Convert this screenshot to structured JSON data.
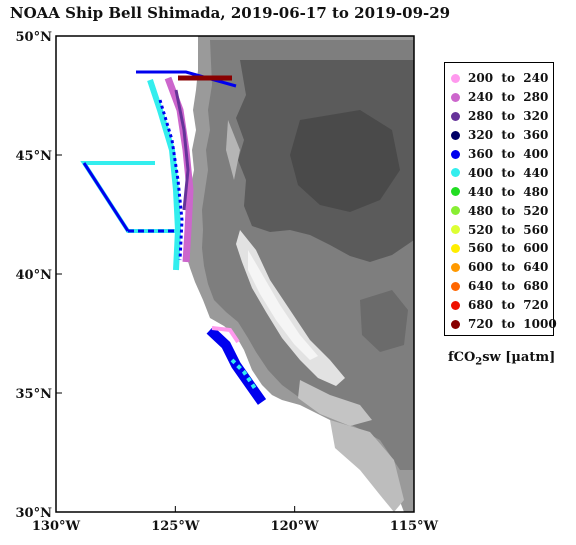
{
  "title": "NOAA Ship Bell Shimada, 2019-06-17 to 2019-09-29",
  "map": {
    "lon_range": [
      -130,
      -115
    ],
    "lat_range": [
      30,
      50
    ],
    "background": "grayscale topography, white ocean",
    "lon_ticks": [
      {
        "value": -130,
        "label": "130°W"
      },
      {
        "value": -125,
        "label": "125°W"
      },
      {
        "value": -120,
        "label": "120°W"
      },
      {
        "value": -115,
        "label": "115°W"
      }
    ],
    "lat_ticks": [
      {
        "value": 30,
        "label": "30°N"
      },
      {
        "value": 35,
        "label": "35°N"
      },
      {
        "value": 40,
        "label": "40°N"
      },
      {
        "value": 45,
        "label": "45°N"
      },
      {
        "value": 50,
        "label": "50°N"
      }
    ]
  },
  "legend": {
    "items": [
      {
        "label": "200  to  240",
        "color": "#ff99ee"
      },
      {
        "label": "240  to  280",
        "color": "#cc66cc"
      },
      {
        "label": "280  to  320",
        "color": "#663399"
      },
      {
        "label": "320  to  360",
        "color": "#000066"
      },
      {
        "label": "360  to  400",
        "color": "#0000ee"
      },
      {
        "label": "400  to  440",
        "color": "#33eeee"
      },
      {
        "label": "440  to  480",
        "color": "#22dd22"
      },
      {
        "label": "480  to  520",
        "color": "#88ee33"
      },
      {
        "label": "520  to  560",
        "color": "#ddff33"
      },
      {
        "label": "560  to  600",
        "color": "#ffee00"
      },
      {
        "label": "600  to  640",
        "color": "#ff9900"
      },
      {
        "label": "640  to  680",
        "color": "#ff6600"
      },
      {
        "label": "680  to  720",
        "color": "#ee1100"
      },
      {
        "label": "720  to  1000",
        "color": "#880000"
      }
    ],
    "unit_prefix": "fCO",
    "unit_sub": "2",
    "unit_suffix": "sw [µatm]"
  }
}
